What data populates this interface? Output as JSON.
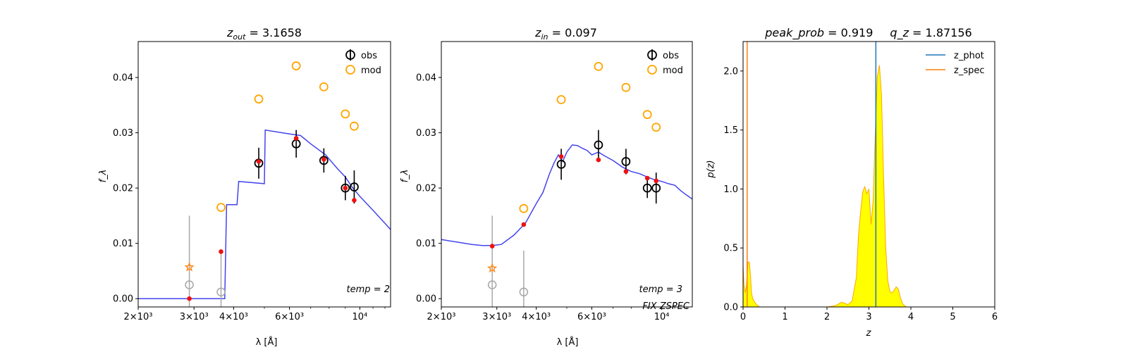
{
  "chart_data": [
    {
      "type": "scatter",
      "title": "z_out = 3.1658",
      "title_parts": {
        "symbol": "z",
        "sub": "out",
        "rest": " = 3.1658"
      },
      "xlabel": "λ [Å]",
      "ylabel": "f_λ",
      "xscale": "log",
      "xlim": [
        2000,
        12500
      ],
      "ylim": [
        -0.0015,
        0.0465
      ],
      "xticks": [
        {
          "v": 2000,
          "label": "2×10³"
        },
        {
          "v": 3000,
          "label": "3×10³"
        },
        {
          "v": 4000,
          "label": "4×10³"
        },
        {
          "v": 6000,
          "label": "6×10³"
        },
        {
          "v": 10000,
          "label": "10⁴"
        }
      ],
      "yticks": [
        {
          "v": 0.0,
          "label": "0.00"
        },
        {
          "v": 0.01,
          "label": "0.01"
        },
        {
          "v": 0.02,
          "label": "0.02"
        },
        {
          "v": 0.03,
          "label": "0.03"
        },
        {
          "v": 0.04,
          "label": "0.04"
        }
      ],
      "template_curve": {
        "color": "#4444ee",
        "x": [
          2000,
          3000,
          3650,
          3750,
          3800,
          4100,
          4150,
          5000,
          5030,
          6000,
          6500,
          7000,
          7800,
          8500,
          9000,
          9500,
          10000,
          11000,
          12500
        ],
        "y": [
          0.0,
          0.0,
          0.0,
          0.0,
          0.017,
          0.017,
          0.0212,
          0.0208,
          0.0305,
          0.0298,
          0.0295,
          0.028,
          0.026,
          0.0235,
          0.022,
          0.02,
          0.0185,
          0.016,
          0.0125
        ]
      },
      "obs": [
        {
          "x": 4800,
          "y": 0.0245,
          "err": 0.0028
        },
        {
          "x": 6300,
          "y": 0.028,
          "err": 0.0025
        },
        {
          "x": 7700,
          "y": 0.025,
          "err": 0.0022
        },
        {
          "x": 9000,
          "y": 0.02,
          "err": 0.0022
        },
        {
          "x": 9600,
          "y": 0.0202,
          "err": 0.003
        }
      ],
      "obs_upper": [
        {
          "x": 2900,
          "y": 0.0025,
          "err": 0.0125
        },
        {
          "x": 3650,
          "y": 0.0012,
          "err": 0.0075
        }
      ],
      "mod": [
        {
          "x": 2900,
          "y": 0.0057,
          "star": true
        },
        {
          "x": 3650,
          "y": 0.0165
        },
        {
          "x": 4800,
          "y": 0.0361
        },
        {
          "x": 6300,
          "y": 0.0421
        },
        {
          "x": 7700,
          "y": 0.0383
        },
        {
          "x": 9000,
          "y": 0.0334
        },
        {
          "x": 9600,
          "y": 0.0312
        }
      ],
      "red_points": [
        {
          "x": 2900,
          "y": 0.0
        },
        {
          "x": 3650,
          "y": 0.0085
        },
        {
          "x": 4800,
          "y": 0.0248
        },
        {
          "x": 6300,
          "y": 0.029
        },
        {
          "x": 7700,
          "y": 0.0252
        },
        {
          "x": 9000,
          "y": 0.02
        },
        {
          "x": 9600,
          "y": 0.0178
        }
      ],
      "annotations": [
        {
          "text": "temp = 2",
          "pos": "bottom-right"
        }
      ],
      "legend": {
        "position": "top-right",
        "entries": [
          {
            "label": "obs",
            "color": "#000000"
          },
          {
            "label": "mod",
            "color": "#ffa500"
          }
        ]
      }
    },
    {
      "type": "scatter",
      "title": "z_in = 0.097",
      "title_parts": {
        "symbol": "z",
        "sub": "in",
        "rest": " = 0.097"
      },
      "xlabel": "λ [Å]",
      "ylabel": "f_λ",
      "xscale": "log",
      "xlim": [
        2000,
        12500
      ],
      "ylim": [
        -0.0015,
        0.0465
      ],
      "xticks": [
        {
          "v": 2000,
          "label": "2×10³"
        },
        {
          "v": 3000,
          "label": "3×10³"
        },
        {
          "v": 4000,
          "label": "4×10³"
        },
        {
          "v": 6000,
          "label": "6×10³"
        },
        {
          "v": 10000,
          "label": "10⁴"
        }
      ],
      "yticks": [
        {
          "v": 0.0,
          "label": "0.00"
        },
        {
          "v": 0.01,
          "label": "0.01"
        },
        {
          "v": 0.02,
          "label": "0.02"
        },
        {
          "v": 0.03,
          "label": "0.03"
        },
        {
          "v": 0.04,
          "label": "0.04"
        }
      ],
      "template_curve": {
        "color": "#4444ee",
        "x": [
          2000,
          2200,
          2500,
          2700,
          2900,
          3100,
          3400,
          3700,
          4000,
          4200,
          4400,
          4550,
          4700,
          4850,
          5000,
          5200,
          5400,
          5600,
          5800,
          6000,
          6300,
          6600,
          7000,
          7500,
          8000,
          8500,
          9000,
          9500,
          10000,
          10500,
          11000,
          11500,
          12000,
          12500
        ],
        "y": [
          0.0107,
          0.0103,
          0.0098,
          0.0096,
          0.0096,
          0.0098,
          0.0115,
          0.0137,
          0.0172,
          0.0192,
          0.0225,
          0.0245,
          0.026,
          0.0248,
          0.0265,
          0.0278,
          0.0277,
          0.0272,
          0.0268,
          0.026,
          0.0265,
          0.0258,
          0.025,
          0.0238,
          0.023,
          0.0226,
          0.022,
          0.0215,
          0.0212,
          0.0208,
          0.0205,
          0.0195,
          0.0187,
          0.018
        ]
      },
      "obs": [
        {
          "x": 4800,
          "y": 0.0243,
          "err": 0.0028
        },
        {
          "x": 6300,
          "y": 0.0278,
          "err": 0.0027
        },
        {
          "x": 7700,
          "y": 0.0248,
          "err": 0.0023
        },
        {
          "x": 9000,
          "y": 0.02,
          "err": 0.0018
        },
        {
          "x": 9600,
          "y": 0.02,
          "err": 0.0028
        }
      ],
      "obs_upper": [
        {
          "x": 2900,
          "y": 0.0025,
          "err": 0.0125
        },
        {
          "x": 3650,
          "y": 0.0012,
          "err": 0.0075
        }
      ],
      "mod": [
        {
          "x": 2900,
          "y": 0.0055,
          "star": true
        },
        {
          "x": 3650,
          "y": 0.0163
        },
        {
          "x": 4800,
          "y": 0.036
        },
        {
          "x": 6300,
          "y": 0.042
        },
        {
          "x": 7700,
          "y": 0.0382
        },
        {
          "x": 9000,
          "y": 0.0333
        },
        {
          "x": 9600,
          "y": 0.031
        }
      ],
      "red_points": [
        {
          "x": 2900,
          "y": 0.0095
        },
        {
          "x": 3650,
          "y": 0.0134
        },
        {
          "x": 4800,
          "y": 0.0257
        },
        {
          "x": 6300,
          "y": 0.0251
        },
        {
          "x": 7700,
          "y": 0.023
        },
        {
          "x": 9000,
          "y": 0.0218
        },
        {
          "x": 9600,
          "y": 0.0213
        }
      ],
      "annotations": [
        {
          "text": "temp = 3",
          "pos": "bottom-right"
        },
        {
          "text": "FIX ZSPEC",
          "pos": "bottom-right-2"
        }
      ],
      "legend": {
        "position": "top-right",
        "entries": [
          {
            "label": "obs",
            "color": "#000000"
          },
          {
            "label": "mod",
            "color": "#ffa500"
          }
        ]
      }
    },
    {
      "type": "area",
      "title": "peak_prob = 0.919      q_z = 1.87156",
      "title_parts": {
        "left": "peak_prob",
        "left_val": " = 0.919",
        "right": "q_z",
        "right_val": " = 1.87156"
      },
      "xlabel": "z",
      "ylabel": "p(z)",
      "xlim": [
        0,
        6
      ],
      "ylim": [
        0,
        2.25
      ],
      "xticks": [
        0,
        1,
        2,
        3,
        4,
        5,
        6
      ],
      "yticks": [
        {
          "v": 0.0,
          "label": "0.0"
        },
        {
          "v": 0.5,
          "label": "0.5"
        },
        {
          "v": 1.0,
          "label": "1.0"
        },
        {
          "v": 1.5,
          "label": "1.5"
        },
        {
          "v": 2.0,
          "label": "2.0"
        }
      ],
      "pz": {
        "fill": "#ffff00",
        "edge": "#ffa500",
        "x": [
          0.0,
          0.02,
          0.05,
          0.08,
          0.1,
          0.12,
          0.15,
          0.18,
          0.2,
          0.23,
          0.26,
          0.3,
          0.35,
          0.4,
          0.5,
          1.0,
          2.0,
          2.2,
          2.35,
          2.5,
          2.6,
          2.7,
          2.75,
          2.8,
          2.85,
          2.9,
          2.95,
          3.0,
          3.05,
          3.1,
          3.15,
          3.2,
          3.25,
          3.3,
          3.35,
          3.4,
          3.45,
          3.5,
          3.55,
          3.6,
          3.65,
          3.7,
          3.75,
          3.8,
          3.85,
          3.9,
          4.0,
          5.0
        ],
        "y": [
          0.35,
          0.2,
          0.12,
          0.18,
          0.3,
          0.38,
          0.38,
          0.25,
          0.12,
          0.07,
          0.05,
          0.03,
          0.01,
          0.0,
          0.0,
          0.0,
          0.0,
          0.01,
          0.04,
          0.02,
          0.05,
          0.25,
          0.6,
          0.8,
          0.97,
          1.02,
          0.96,
          1.0,
          0.7,
          0.9,
          1.45,
          1.95,
          2.05,
          1.8,
          1.1,
          0.5,
          0.22,
          0.13,
          0.12,
          0.14,
          0.17,
          0.15,
          0.08,
          0.03,
          0.01,
          0.0,
          0.0,
          0.0
        ]
      },
      "vlines": [
        {
          "name": "z_phot",
          "x": 3.1658,
          "color": "#1f77b4"
        },
        {
          "name": "z_spec",
          "x": 0.097,
          "color": "#ff7f0e"
        }
      ],
      "legend": {
        "position": "top-right",
        "entries": [
          {
            "label": "z_phot",
            "color": "#1f77b4"
          },
          {
            "label": "z_spec",
            "color": "#ff7f0e"
          }
        ]
      }
    }
  ]
}
